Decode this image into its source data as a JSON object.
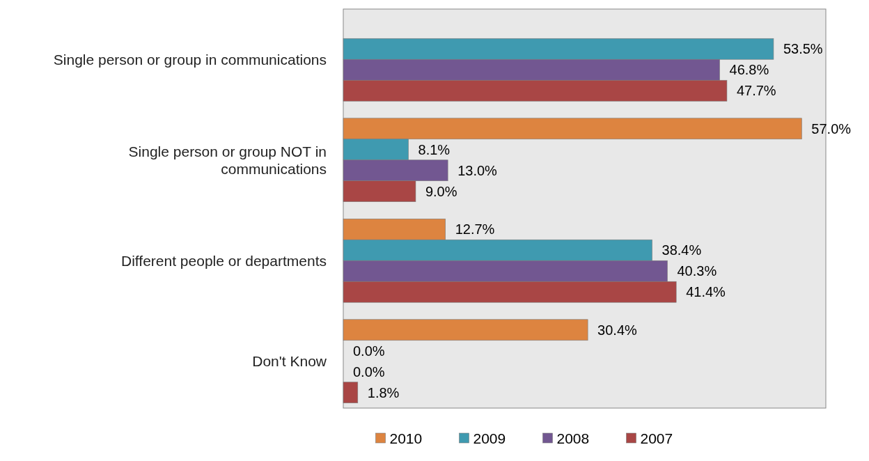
{
  "chart_data": {
    "type": "bar",
    "orientation": "horizontal",
    "categories": [
      "Single person or group in communications",
      "Single person or group NOT in communications",
      "Different people or departments",
      "Don't Know"
    ],
    "series": [
      {
        "name": "2010",
        "color": "#dd8440",
        "values": [
          null,
          57.0,
          12.7,
          30.4
        ],
        "value_labels": [
          null,
          "57.0%",
          "12.7%",
          "30.4%"
        ]
      },
      {
        "name": "2009",
        "color": "#3f9ab0",
        "values": [
          53.5,
          8.1,
          38.4,
          0.0
        ],
        "value_labels": [
          "53.5%",
          "8.1%",
          "38.4%",
          "0.0%"
        ]
      },
      {
        "name": "2008",
        "color": "#725791",
        "values": [
          46.8,
          13.0,
          40.3,
          0.0
        ],
        "value_labels": [
          "46.8%",
          "13.0%",
          "40.3%",
          "0.0%"
        ]
      },
      {
        "name": "2007",
        "color": "#a94645",
        "values": [
          47.7,
          9.0,
          41.4,
          1.8
        ],
        "value_labels": [
          "47.7%",
          "9.0%",
          "41.4%",
          "1.8%"
        ]
      }
    ],
    "xlim": [
      0,
      60
    ],
    "tick_labels": "y",
    "grid": false,
    "legend": "bottom"
  }
}
